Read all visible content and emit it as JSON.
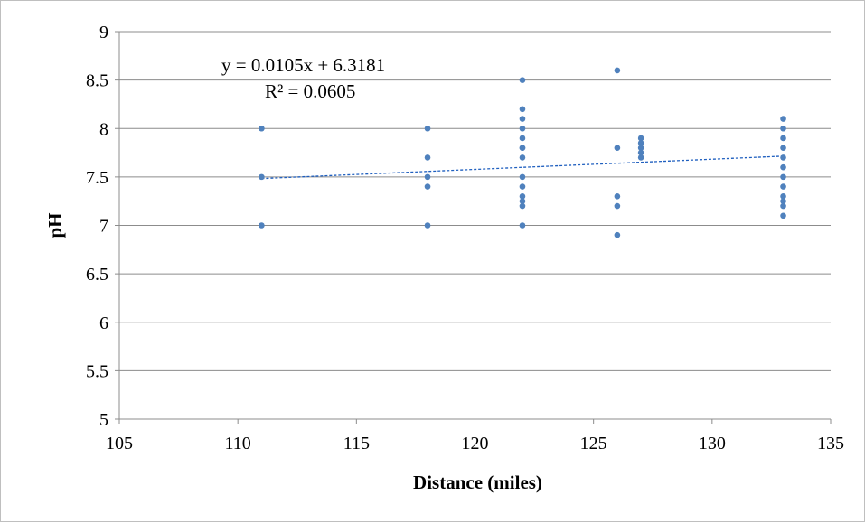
{
  "chart_data": {
    "type": "scatter",
    "title": "",
    "xlabel": "Distance (miles)",
    "ylabel": "pH",
    "xlim": [
      105,
      135
    ],
    "ylim": [
      5,
      9
    ],
    "xticks": [
      105,
      110,
      115,
      120,
      125,
      130,
      135
    ],
    "yticks": [
      5,
      5.5,
      6,
      6.5,
      7,
      7.5,
      8,
      8.5,
      9
    ],
    "grid": "horizontal",
    "legend": "none",
    "marker_color": "#4f81bd",
    "trendline_color": "#1f5fbf",
    "points": [
      [
        111,
        8.0
      ],
      [
        111,
        7.5
      ],
      [
        111,
        7.0
      ],
      [
        118,
        8.0
      ],
      [
        118,
        7.7
      ],
      [
        118,
        7.5
      ],
      [
        118,
        7.4
      ],
      [
        118,
        7.0
      ],
      [
        122,
        8.5
      ],
      [
        122,
        8.2
      ],
      [
        122,
        8.1
      ],
      [
        122,
        8.0
      ],
      [
        122,
        7.9
      ],
      [
        122,
        7.8
      ],
      [
        122,
        7.8
      ],
      [
        122,
        7.7
      ],
      [
        122,
        7.5
      ],
      [
        122,
        7.4
      ],
      [
        122,
        7.3
      ],
      [
        122,
        7.25
      ],
      [
        122,
        7.2
      ],
      [
        122,
        7.0
      ],
      [
        126,
        8.6
      ],
      [
        126,
        7.8
      ],
      [
        126,
        7.3
      ],
      [
        126,
        7.2
      ],
      [
        126,
        6.9
      ],
      [
        127,
        7.9
      ],
      [
        127,
        7.85
      ],
      [
        127,
        7.8
      ],
      [
        127,
        7.75
      ],
      [
        127,
        7.7
      ],
      [
        133,
        8.1
      ],
      [
        133,
        8.0
      ],
      [
        133,
        7.9
      ],
      [
        133,
        7.8
      ],
      [
        133,
        7.7
      ],
      [
        133,
        7.6
      ],
      [
        133,
        7.5
      ],
      [
        133,
        7.4
      ],
      [
        133,
        7.3
      ],
      [
        133,
        7.25
      ],
      [
        133,
        7.2
      ],
      [
        133,
        7.1
      ]
    ],
    "trendline": {
      "slope": 0.0105,
      "intercept": 6.3181,
      "x_range": [
        111,
        133
      ],
      "equation_label": "y = 0.0105x + 6.3181",
      "r2_label": "R² = 0.0605"
    }
  }
}
